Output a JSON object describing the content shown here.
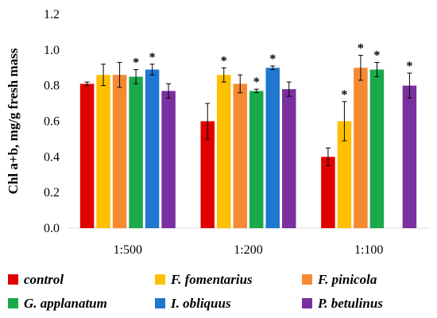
{
  "chart_data": {
    "type": "bar",
    "ylabel": "Chl a+b, mg/g fresh mass",
    "xlabel": "",
    "ylim": [
      0,
      1.2
    ],
    "yticks": [
      "0.0",
      "0.2",
      "0.4",
      "0.6",
      "0.8",
      "1.0",
      "1.2"
    ],
    "categories": [
      "1:500",
      "1:200",
      "1:100"
    ],
    "legend_position": "bottom",
    "series": [
      {
        "name": "control",
        "color": "#e00000",
        "values": [
          0.81,
          0.6,
          0.4
        ],
        "errors": [
          0.01,
          0.1,
          0.05
        ],
        "significant": [
          false,
          false,
          false
        ]
      },
      {
        "name": "F. fomentarius",
        "color": "#ffc000",
        "values": [
          0.86,
          0.86,
          0.6
        ],
        "errors": [
          0.06,
          0.04,
          0.11
        ],
        "significant": [
          false,
          true,
          true
        ]
      },
      {
        "name": "F. pinicola",
        "color": "#f58a32",
        "values": [
          0.86,
          0.81,
          0.9
        ],
        "errors": [
          0.07,
          0.05,
          0.07
        ],
        "significant": [
          false,
          false,
          true
        ]
      },
      {
        "name": "G. applanatum",
        "color": "#1aaa4a",
        "values": [
          0.85,
          0.77,
          0.89
        ],
        "errors": [
          0.04,
          0.01,
          0.04
        ],
        "significant": [
          true,
          true,
          true
        ]
      },
      {
        "name": "I. obliquus",
        "color": "#1f77d0",
        "values": [
          0.89,
          0.9,
          null
        ],
        "errors": [
          0.03,
          0.01,
          null
        ],
        "significant": [
          true,
          true,
          false
        ]
      },
      {
        "name": "P. betulinus",
        "color": "#7a30a0",
        "values": [
          0.77,
          0.78,
          0.8
        ],
        "errors": [
          0.04,
          0.04,
          0.07
        ],
        "significant": [
          false,
          false,
          true
        ]
      }
    ],
    "significance_marker": "*"
  }
}
